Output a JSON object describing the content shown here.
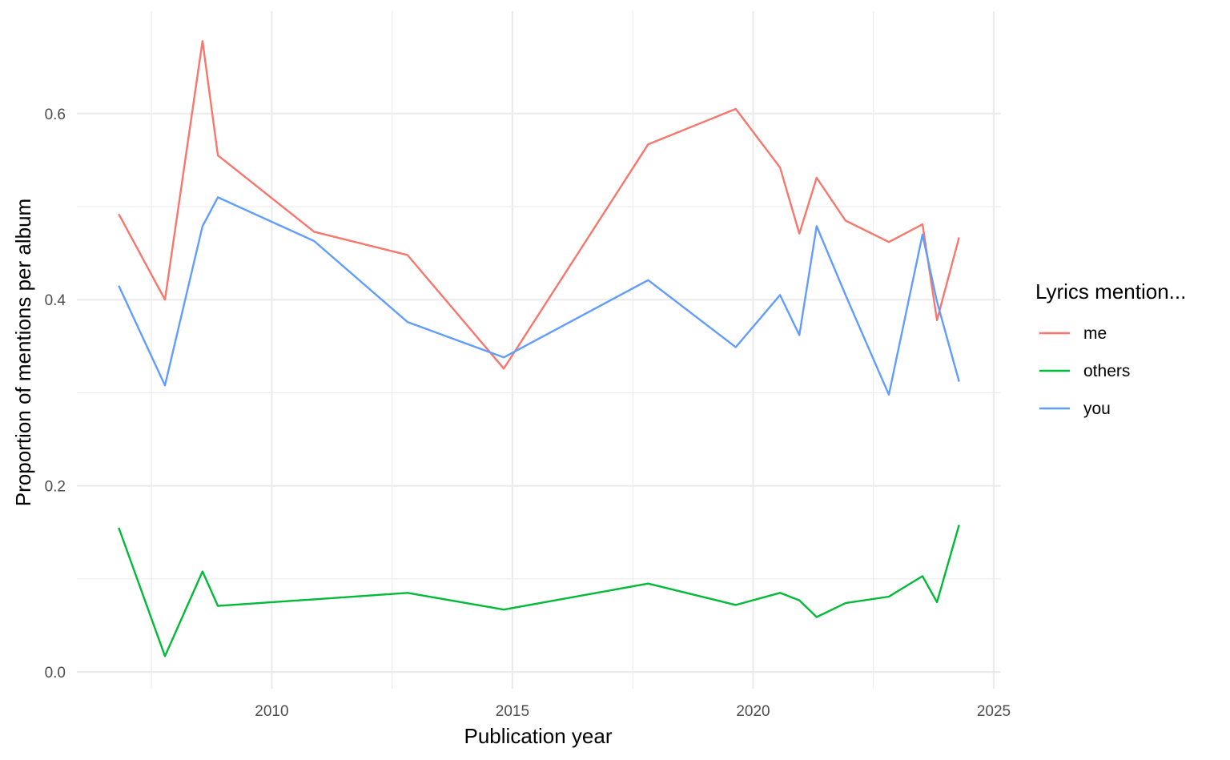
{
  "chart_data": {
    "type": "line",
    "xlabel": "Publication year",
    "ylabel": "Proportion of mentions per album",
    "xlim": [
      2005.95,
      2025.15
    ],
    "ylim": [
      -0.018,
      0.71
    ],
    "x_major_ticks": [
      2010,
      2015,
      2020,
      2025
    ],
    "x_minor_ticks": [
      2007.5,
      2012.5,
      2017.5,
      2022.5
    ],
    "y_major_ticks": [
      0.0,
      0.2,
      0.4,
      0.6
    ],
    "y_minor_ticks": [
      0.1,
      0.3,
      0.5
    ],
    "x_tick_labels": [
      "2010",
      "2015",
      "2020",
      "2025"
    ],
    "y_tick_labels": [
      "0.0",
      "0.2",
      "0.4",
      "0.6"
    ],
    "grid": true,
    "legend": {
      "title": "Lyrics mention...",
      "placement": "right"
    },
    "series": [
      {
        "name": "me",
        "color": "#F8766D",
        "x": [
          2006.82,
          2007.78,
          2008.56,
          2008.88,
          2010.88,
          2012.82,
          2014.82,
          2017.82,
          2019.64,
          2020.56,
          2020.96,
          2021.32,
          2021.92,
          2022.82,
          2023.52,
          2023.82,
          2024.28
        ],
        "y": [
          0.492,
          0.4,
          0.678,
          0.555,
          0.473,
          0.448,
          0.326,
          0.567,
          0.605,
          0.542,
          0.471,
          0.531,
          0.485,
          0.462,
          0.481,
          0.378,
          0.467
        ]
      },
      {
        "name": "others",
        "color": "#00BA38",
        "x": [
          2006.82,
          2007.78,
          2008.56,
          2008.88,
          2010.88,
          2012.82,
          2014.82,
          2017.82,
          2019.64,
          2020.56,
          2020.96,
          2021.32,
          2021.92,
          2022.82,
          2023.52,
          2023.82,
          2024.28
        ],
        "y": [
          0.155,
          0.017,
          0.108,
          0.071,
          0.078,
          0.085,
          0.067,
          0.095,
          0.072,
          0.085,
          0.077,
          0.059,
          0.074,
          0.081,
          0.103,
          0.075,
          0.158
        ]
      },
      {
        "name": "you",
        "color": "#619CFF",
        "x": [
          2006.82,
          2007.78,
          2008.56,
          2008.88,
          2010.88,
          2012.82,
          2014.82,
          2017.82,
          2019.64,
          2020.56,
          2020.96,
          2021.32,
          2021.92,
          2022.82,
          2023.52,
          2023.82,
          2024.28
        ],
        "y": [
          0.415,
          0.308,
          0.479,
          0.51,
          0.463,
          0.376,
          0.338,
          0.421,
          0.349,
          0.405,
          0.362,
          0.479,
          0.405,
          0.298,
          0.47,
          0.398,
          0.312
        ]
      }
    ]
  }
}
